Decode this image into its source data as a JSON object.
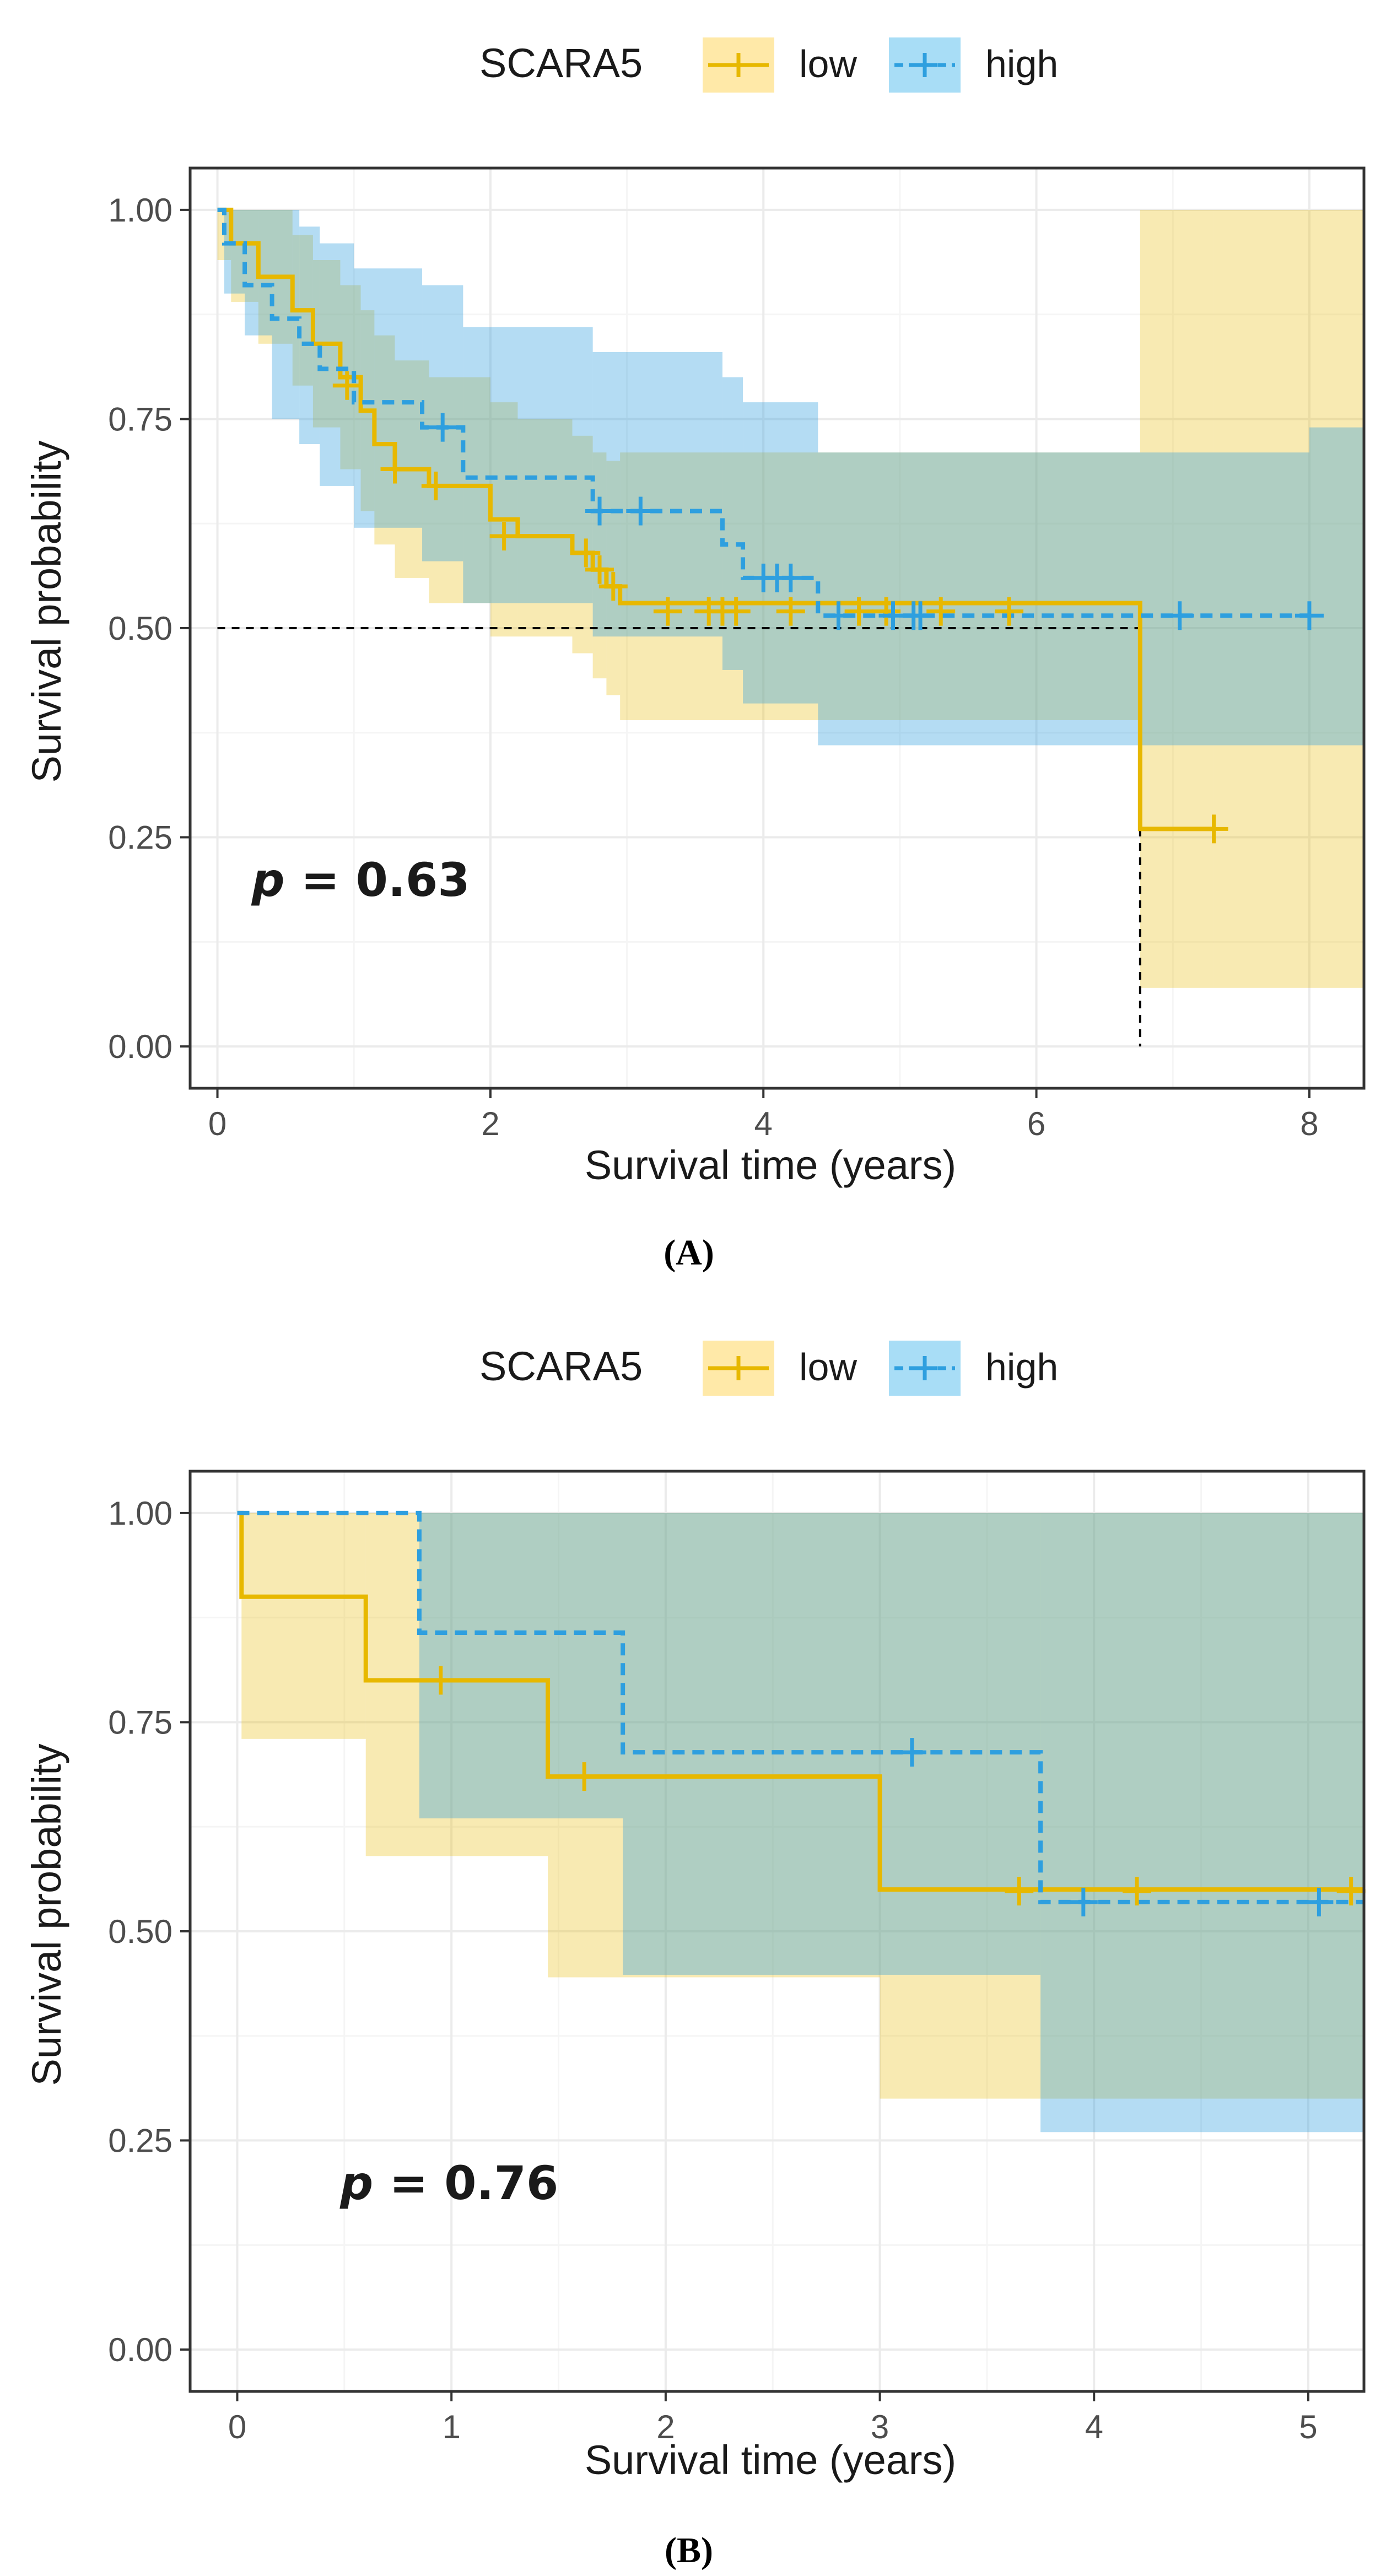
{
  "colors": {
    "low": "#E7B800",
    "high": "#2E9FDF",
    "low_fill": "#FFE9A8",
    "high_fill": "#A8DDF6",
    "overlap_fill": "#B7D5BE",
    "grid_major": "#EBEBEB",
    "grid_minor": "#F5F5F5",
    "panel_border": "#333333",
    "text": "#1A1A1A",
    "tick_text": "#4D4D4D"
  },
  "chart_data": [
    {
      "panel": "A",
      "type": "line",
      "caption": "(A)",
      "legend": {
        "title": "SCARA5",
        "labels": [
          "low",
          "high"
        ],
        "position": "top"
      },
      "pvalue": {
        "prefix": "p",
        "text": "= 0.63"
      },
      "xlabel": "Survival time (years)",
      "ylabel": "Survival probability",
      "xlim": [
        -0.2,
        8.4
      ],
      "ylim": [
        -0.05,
        1.05
      ],
      "xticks": [
        0,
        2,
        4,
        6,
        8
      ],
      "yticks": [
        0,
        0.25,
        0.5,
        0.75,
        1
      ],
      "ytick_labels": [
        "0.00",
        "0.25",
        "0.50",
        "0.75",
        "1.00"
      ],
      "grid": true,
      "median_line": {
        "y": 0.5,
        "x_end": 6.76
      },
      "series": [
        {
          "name": "low",
          "style": "solid",
          "x": [
            0,
            0.1,
            0.3,
            0.55,
            0.7,
            0.9,
            1.05,
            1.15,
            1.3,
            1.55,
            2.0,
            2.2,
            2.6,
            2.75,
            2.85,
            2.95,
            6.76,
            7.3
          ],
          "y": [
            1.0,
            0.96,
            0.92,
            0.88,
            0.84,
            0.8,
            0.76,
            0.72,
            0.69,
            0.67,
            0.63,
            0.61,
            0.59,
            0.57,
            0.55,
            0.53,
            0.26,
            0.26
          ],
          "ci_lower": [
            0.94,
            0.89,
            0.84,
            0.79,
            0.74,
            0.69,
            0.64,
            0.6,
            0.56,
            0.53,
            0.49,
            0.49,
            0.47,
            0.44,
            0.42,
            0.39,
            0.07,
            0.07
          ],
          "ci_upper": [
            1.0,
            1.0,
            1.0,
            0.97,
            0.94,
            0.91,
            0.88,
            0.85,
            0.82,
            0.8,
            0.77,
            0.75,
            0.73,
            0.71,
            0.7,
            0.71,
            1.0,
            1.0
          ],
          "censored": [
            [
              0.95,
              0.79
            ],
            [
              1.3,
              0.69
            ],
            [
              1.6,
              0.67
            ],
            [
              2.1,
              0.61
            ],
            [
              2.7,
              0.59
            ],
            [
              2.8,
              0.57
            ],
            [
              2.9,
              0.55
            ],
            [
              3.3,
              0.52
            ],
            [
              3.6,
              0.52
            ],
            [
              3.7,
              0.52
            ],
            [
              3.8,
              0.52
            ],
            [
              4.2,
              0.52
            ],
            [
              4.7,
              0.52
            ],
            [
              4.9,
              0.52
            ],
            [
              5.3,
              0.52
            ],
            [
              5.8,
              0.52
            ],
            [
              7.3,
              0.26
            ]
          ]
        },
        {
          "name": "high",
          "style": "dashed",
          "x": [
            0,
            0.05,
            0.2,
            0.4,
            0.6,
            0.75,
            1.0,
            1.5,
            1.8,
            2.75,
            3.7,
            3.85,
            4.0,
            4.4,
            8.0
          ],
          "y": [
            1.0,
            0.96,
            0.91,
            0.87,
            0.84,
            0.81,
            0.77,
            0.74,
            0.68,
            0.64,
            0.6,
            0.56,
            0.56,
            0.515,
            0.515
          ],
          "ci_lower": [
            1.0,
            0.9,
            0.85,
            0.75,
            0.72,
            0.67,
            0.62,
            0.58,
            0.53,
            0.49,
            0.45,
            0.41,
            0.41,
            0.36,
            0.36
          ],
          "ci_upper": [
            1.0,
            1.0,
            1.0,
            1.0,
            0.98,
            0.96,
            0.93,
            0.91,
            0.86,
            0.83,
            0.8,
            0.77,
            0.77,
            0.71,
            0.74
          ],
          "censored": [
            [
              1.65,
              0.74
            ],
            [
              2.8,
              0.64
            ],
            [
              3.1,
              0.64
            ],
            [
              4.0,
              0.56
            ],
            [
              4.1,
              0.56
            ],
            [
              4.2,
              0.56
            ],
            [
              4.55,
              0.515
            ],
            [
              4.95,
              0.515
            ],
            [
              5.1,
              0.515
            ],
            [
              5.15,
              0.515
            ],
            [
              7.05,
              0.515
            ],
            [
              8.0,
              0.515
            ]
          ]
        }
      ]
    },
    {
      "panel": "B",
      "type": "line",
      "caption": "(B)",
      "legend": {
        "title": "SCARA5",
        "labels": [
          "low",
          "high"
        ],
        "position": "top"
      },
      "pvalue": {
        "prefix": "p",
        "text": "= 0.76"
      },
      "xlabel": "Survival time (years)",
      "ylabel": "Survival probability",
      "xlim": [
        -0.22,
        5.26
      ],
      "ylim": [
        -0.05,
        1.05
      ],
      "xticks": [
        0,
        1,
        2,
        3,
        4,
        5
      ],
      "yticks": [
        0,
        0.25,
        0.5,
        0.75,
        1
      ],
      "ytick_labels": [
        "0.00",
        "0.25",
        "0.50",
        "0.75",
        "1.00"
      ],
      "grid": true,
      "series": [
        {
          "name": "low",
          "style": "solid",
          "x": [
            0,
            0.02,
            0.6,
            1.45,
            3.0,
            5.26
          ],
          "y": [
            1.0,
            0.9,
            0.8,
            0.685,
            0.55,
            0.55
          ],
          "ci_lower": [
            1.0,
            0.73,
            0.59,
            0.445,
            0.3,
            0.3
          ],
          "ci_upper": [
            1.0,
            1.0,
            1.0,
            1.0,
            1.0,
            1.0
          ],
          "censored": [
            [
              0.95,
              0.8
            ],
            [
              1.62,
              0.685
            ],
            [
              3.65,
              0.548
            ],
            [
              4.2,
              0.548
            ],
            [
              5.2,
              0.548
            ]
          ]
        },
        {
          "name": "high",
          "style": "dashed",
          "x": [
            0,
            0.85,
            1.8,
            3.75,
            5.26
          ],
          "y": [
            1.0,
            0.857,
            0.714,
            0.535,
            0.535
          ],
          "ci_lower": [
            1.0,
            0.635,
            0.448,
            0.26,
            0.26
          ],
          "ci_upper": [
            1.0,
            1.0,
            1.0,
            1.0,
            1.0
          ],
          "censored": [
            [
              3.15,
              0.714
            ],
            [
              3.95,
              0.535
            ],
            [
              5.05,
              0.535
            ]
          ]
        }
      ]
    }
  ]
}
